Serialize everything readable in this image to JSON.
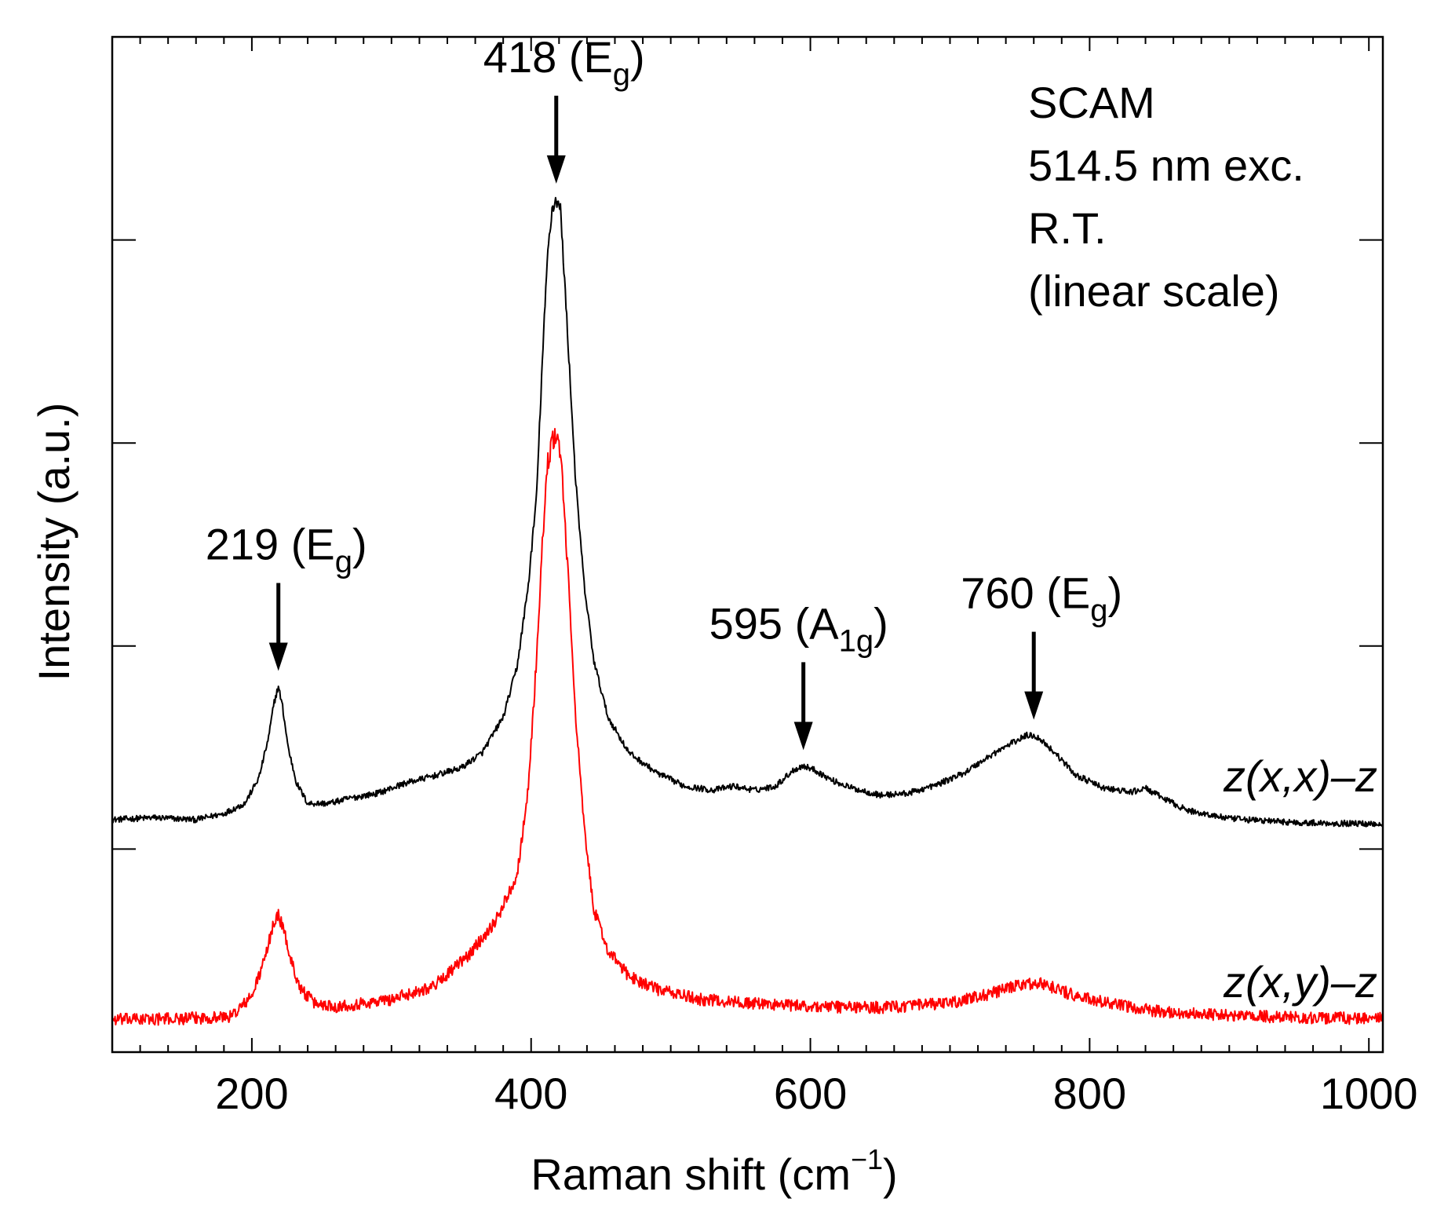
{
  "chart_data": {
    "type": "line",
    "title": "",
    "xlabel": "Raman shift (cm",
    "xlabel_sup": "−1",
    "xlabel_close": ")",
    "ylabel": "Intensity (a.u.)",
    "xlim": [
      100,
      1010
    ],
    "ylim": [
      0,
      10
    ],
    "xticks": [
      200,
      400,
      600,
      800,
      1000
    ],
    "x_minor_step": 20,
    "yticks": [
      2,
      4,
      6,
      8
    ],
    "y_minor_ticks": false,
    "grid": false,
    "info_lines": [
      "SCAM",
      "514.5 nm exc.",
      "R.T.",
      "(linear scale)"
    ],
    "annotations": [
      {
        "x": 219,
        "main": "219 (E",
        "sub": "g",
        "close": ")"
      },
      {
        "x": 418,
        "main": "418 (E",
        "sub": "g",
        "close": ")"
      },
      {
        "x": 595,
        "main": "595 (A",
        "sub": "1g",
        "close": ")"
      },
      {
        "x": 760,
        "main": "760 (E",
        "sub": "g",
        "close": ")"
      }
    ],
    "series": [
      {
        "name": "z(x,x)−z",
        "label_parts": [
          "z(x,x)",
          "–z"
        ],
        "color": "#000000",
        "noise": 0.03,
        "x": [
          100,
          130,
          160,
          180,
          195,
          205,
          212,
          216,
          219,
          222,
          226,
          232,
          240,
          255,
          270,
          290,
          310,
          330,
          350,
          365,
          380,
          390,
          398,
          404,
          408,
          412,
          415,
          418,
          421,
          424,
          428,
          432,
          438,
          445,
          455,
          470,
          490,
          510,
          530,
          545,
          560,
          575,
          588,
          595,
          603,
          615,
          630,
          650,
          670,
          690,
          710,
          730,
          745,
          755,
          760,
          765,
          775,
          790,
          810,
          830,
          840,
          850,
          870,
          900,
          950,
          1000,
          1010
        ],
        "y": [
          2.29,
          2.31,
          2.29,
          2.35,
          2.45,
          2.7,
          3.1,
          3.45,
          3.6,
          3.4,
          3.0,
          2.65,
          2.45,
          2.45,
          2.5,
          2.55,
          2.65,
          2.72,
          2.8,
          2.95,
          3.3,
          3.8,
          4.6,
          5.5,
          6.8,
          7.9,
          8.3,
          8.4,
          8.3,
          7.6,
          6.6,
          5.6,
          4.6,
          3.85,
          3.3,
          2.95,
          2.75,
          2.62,
          2.58,
          2.62,
          2.58,
          2.62,
          2.78,
          2.82,
          2.78,
          2.68,
          2.6,
          2.53,
          2.55,
          2.63,
          2.75,
          2.93,
          3.05,
          3.12,
          3.12,
          3.08,
          2.95,
          2.73,
          2.6,
          2.56,
          2.6,
          2.52,
          2.38,
          2.3,
          2.26,
          2.25,
          2.25
        ]
      },
      {
        "name": "z(x,y)−z",
        "label_parts": [
          "z(x,y)",
          "–z"
        ],
        "color": "#ff0000",
        "noise": 0.06,
        "x": [
          100,
          150,
          185,
          200,
          210,
          215,
          219,
          223,
          228,
          235,
          245,
          260,
          280,
          300,
          330,
          355,
          375,
          390,
          398,
          404,
          408,
          412,
          415,
          418,
          421,
          424,
          428,
          432,
          438,
          445,
          455,
          470,
          490,
          520,
          560,
          600,
          650,
          700,
          730,
          750,
          760,
          770,
          790,
          820,
          850,
          900,
          950,
          1010
        ],
        "y": [
          0.32,
          0.33,
          0.35,
          0.55,
          0.95,
          1.25,
          1.35,
          1.2,
          0.9,
          0.62,
          0.48,
          0.45,
          0.48,
          0.52,
          0.65,
          0.95,
          1.3,
          1.75,
          2.6,
          3.9,
          5.0,
          5.8,
          6.0,
          6.1,
          5.9,
          5.3,
          4.3,
          3.3,
          2.2,
          1.4,
          1.0,
          0.75,
          0.62,
          0.52,
          0.48,
          0.45,
          0.44,
          0.48,
          0.58,
          0.66,
          0.68,
          0.66,
          0.55,
          0.46,
          0.4,
          0.36,
          0.34,
          0.33
        ]
      }
    ]
  }
}
